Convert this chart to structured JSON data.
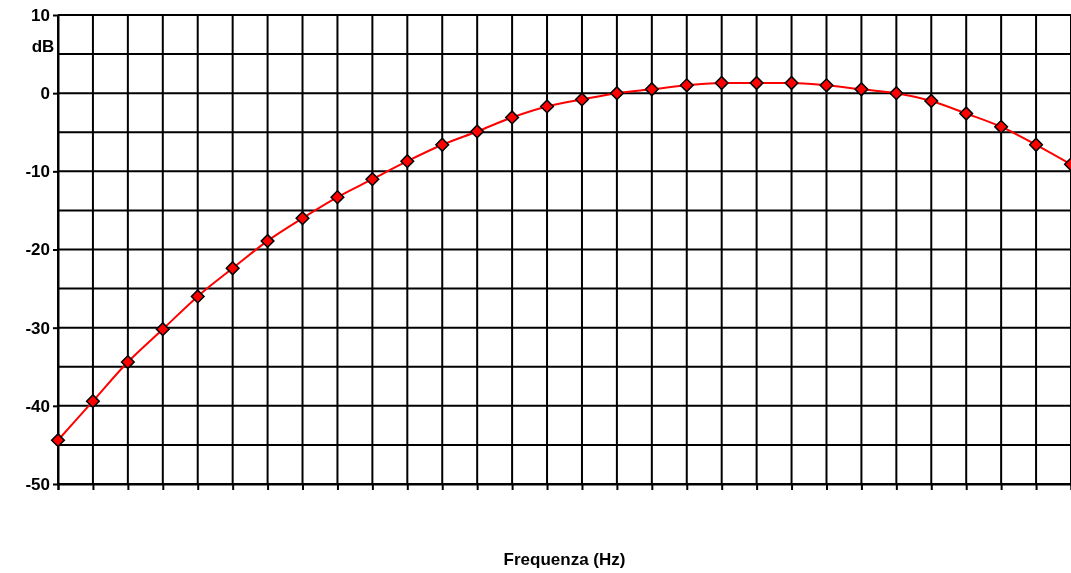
{
  "chart_data": {
    "type": "line",
    "ylabel": "dB",
    "xlabel": "Frequenza (Hz)",
    "categories": [
      null,
      null,
      null,
      null,
      null,
      null,
      null,
      null,
      null,
      null,
      null,
      null,
      null,
      null,
      null,
      null,
      null,
      null,
      null,
      null,
      null,
      null,
      null,
      null,
      null,
      null,
      null,
      null,
      null,
      null
    ],
    "series": [
      {
        "color": "#ff0000",
        "values": [
          -44.4,
          -39.4,
          -34.4,
          -30.2,
          -26.0,
          -22.4,
          -18.9,
          -16.0,
          -13.3,
          -11.0,
          -8.7,
          -6.6,
          -4.9,
          -3.1,
          -1.7,
          -0.8,
          0,
          0.5,
          1.0,
          1.3,
          1.3,
          1.3,
          1.0,
          0.5,
          0,
          -1.0,
          -2.6,
          -4.3,
          -6.6,
          -9.1
        ]
      }
    ],
    "ylim": [
      -50,
      10
    ],
    "yticks": [
      -50,
      {
        "value": -45,
        "label": null
      },
      -40,
      {
        "value": -35,
        "label": null
      },
      -30,
      {
        "value": -25,
        "label": null
      },
      -20,
      {
        "value": -15,
        "label": null
      },
      -10,
      {
        "value": -5,
        "label": null
      },
      0,
      {
        "value": 5,
        "label": null
      },
      10
    ],
    "grid": true,
    "marker": "diamond",
    "line_style": "solid"
  }
}
